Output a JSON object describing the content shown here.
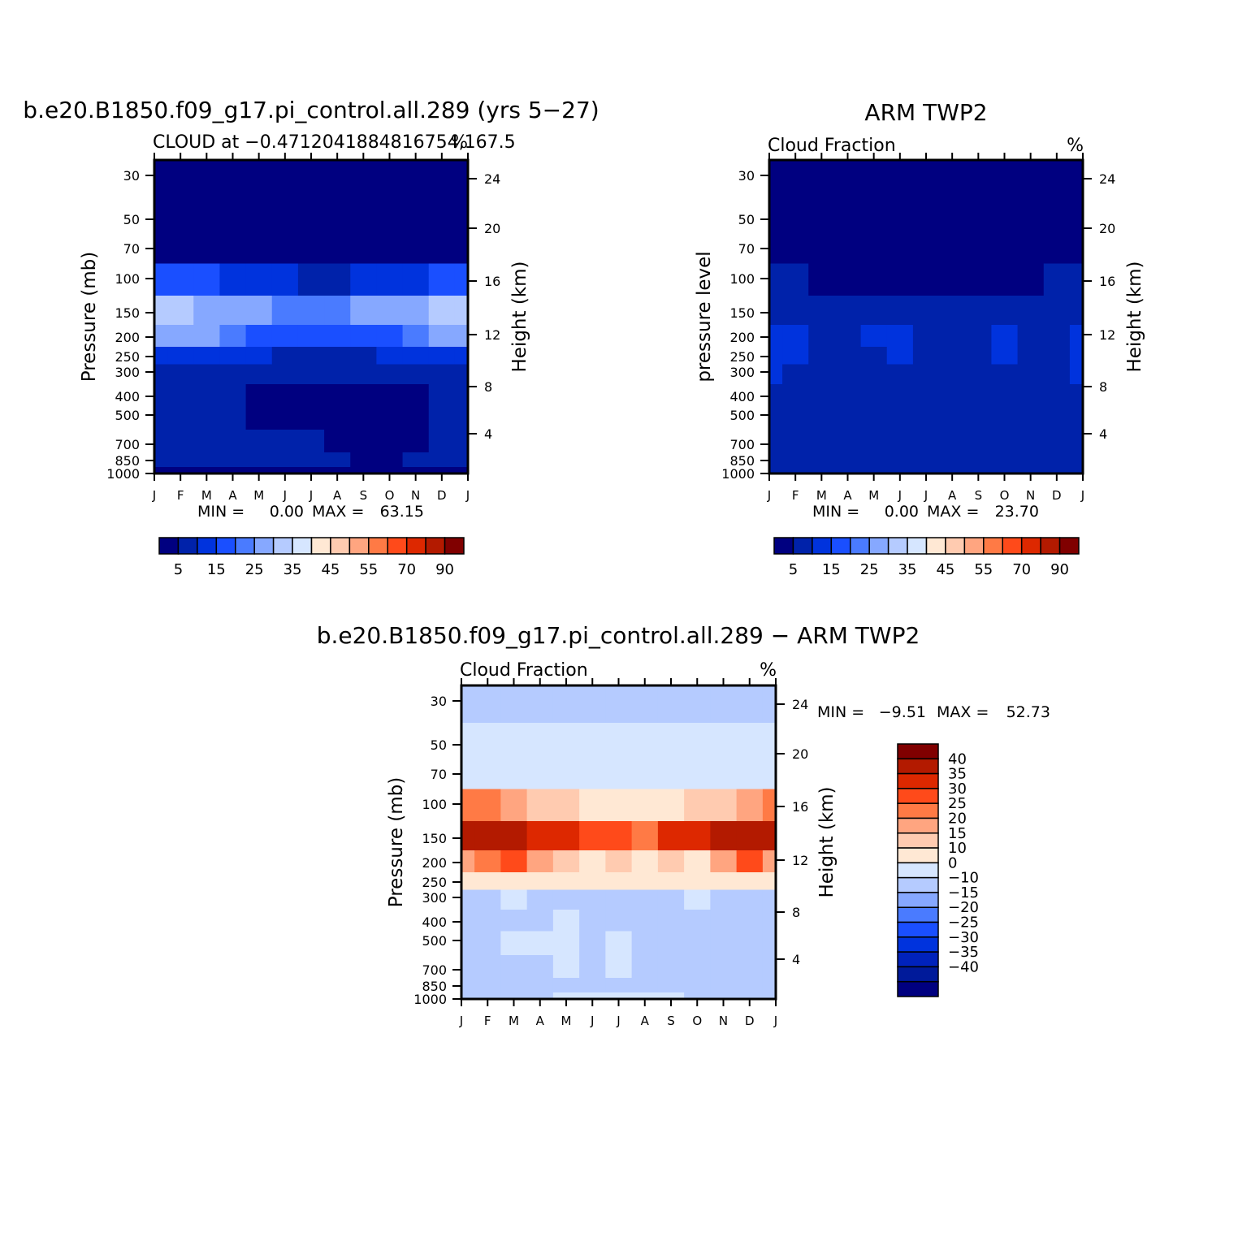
{
  "colors": {
    "panel_palette": [
      "#000080",
      "#0022aa",
      "#0033dd",
      "#1a4fff",
      "#4a7bff",
      "#86a8ff",
      "#b5cbff",
      "#d6e6ff",
      "#ffe8d4",
      "#ffcbb0",
      "#ffa580",
      "#ff7a45",
      "#ff4a1a",
      "#dd2800",
      "#b31a00",
      "#800000"
    ],
    "diff_palette": [
      "#000080",
      "#001a9a",
      "#0022bb",
      "#0033dd",
      "#1a4fff",
      "#4a7bff",
      "#86a8ff",
      "#b5cbff",
      "#d6e6ff",
      "#ffe8d4",
      "#ffcbb0",
      "#ffa580",
      "#ff7a45",
      "#ff4a1a",
      "#dd2800",
      "#b31a00",
      "#800000"
    ]
  },
  "month_labels": [
    "J",
    "F",
    "M",
    "A",
    "M",
    "J",
    "J",
    "A",
    "S",
    "O",
    "N",
    "D",
    "J"
  ],
  "pressure_ticks": [
    "30",
    "50",
    "70",
    "100",
    "150",
    "200",
    "250",
    "300",
    "400",
    "500",
    "700",
    "850",
    "1000"
  ],
  "height_ticks": [
    "24",
    "20",
    "16",
    "12",
    "8",
    "4"
  ],
  "panels": {
    "model": {
      "main_title": "b.e20.B1850.f09_g17.pi_control.all.289 (yrs 5-27)",
      "left_title": "CLOUD at -0.4712041884816754,167.5",
      "right_title": "%",
      "ylabel": "Pressure (mb)",
      "ylabel_right": "Height (km)",
      "min_label": "MIN =",
      "min_value": "0.00",
      "max_label": "MAX =",
      "max_value": "63.15"
    },
    "obs": {
      "main_title": "ARM TWP2",
      "left_title": "Cloud Fraction",
      "right_title": "%",
      "ylabel": "pressure level",
      "ylabel_right": "Height (km)",
      "min_label": "MIN =",
      "min_value": "0.00",
      "max_label": "MAX =",
      "max_value": "23.70"
    },
    "diff": {
      "main_title": "b.e20.B1850.f09_g17.pi_control.all.289 - ARM TWP2",
      "left_title": "Cloud Fraction",
      "right_title": "%",
      "ylabel": "Pressure (mb)",
      "ylabel_right": "Height (km)",
      "min_label": "MIN =",
      "min_value": "-9.51",
      "max_label": "MAX =",
      "max_value": "52.73"
    }
  },
  "colorbar_top": {
    "labels": [
      "5",
      "15",
      "25",
      "35",
      "45",
      "55",
      "70",
      "90"
    ]
  },
  "colorbar_diff": {
    "labels": [
      "40",
      "35",
      "30",
      "25",
      "20",
      "15",
      "10",
      "0",
      "-10",
      "-15",
      "-20",
      "-25",
      "-30",
      "-35",
      "-40"
    ]
  },
  "chart_data": [
    {
      "type": "heatmap",
      "title": "b.e20.B1850.f09_g17.pi_control.all.289 (yrs 5-27)",
      "subtitle": "CLOUD at -0.4712041884816754,167.5",
      "units": "%",
      "x": [
        "J",
        "F",
        "M",
        "A",
        "M",
        "J",
        "J",
        "A",
        "S",
        "O",
        "N",
        "D",
        "J"
      ],
      "y": [
        30,
        50,
        70,
        100,
        150,
        200,
        250,
        300,
        400,
        500,
        700,
        850,
        1000
      ],
      "ylabel": "Pressure (mb)",
      "ylabel_right": "Height (km)",
      "y_right_ticks": [
        24,
        20,
        16,
        12,
        8,
        4
      ],
      "min": 0.0,
      "max": 63.15,
      "legend_levels": [
        5,
        15,
        25,
        35,
        45,
        55,
        70,
        90
      ],
      "values": [
        [
          1,
          1,
          1,
          1,
          1,
          1,
          1,
          1,
          1,
          1,
          1,
          1,
          1
        ],
        [
          1,
          1,
          1,
          1,
          1,
          1,
          1,
          1,
          1,
          1,
          1,
          1,
          1
        ],
        [
          2,
          3,
          1,
          1,
          1,
          1,
          1,
          1,
          1,
          1,
          1,
          1,
          2
        ],
        [
          33,
          30,
          26,
          21,
          17,
          15,
          14,
          14,
          15,
          17,
          21,
          27,
          33
        ],
        [
          63,
          63,
          52,
          46,
          45,
          42,
          40,
          35,
          45,
          46,
          52,
          63,
          63
        ],
        [
          46,
          45,
          45,
          37,
          34,
          33,
          30,
          25,
          29,
          31,
          36,
          45,
          46
        ],
        [
          20,
          19,
          19,
          17,
          15,
          14,
          14,
          13,
          14,
          15,
          17,
          19,
          20
        ],
        [
          10,
          10,
          9,
          8,
          8,
          8,
          7,
          7,
          7,
          7,
          8,
          9,
          10
        ],
        [
          9,
          9,
          5,
          5,
          4,
          3,
          3,
          2,
          2,
          2,
          2,
          5,
          9
        ],
        [
          9,
          9,
          7,
          5,
          4,
          4,
          3,
          2,
          2,
          2,
          3,
          7,
          9
        ],
        [
          6,
          6,
          5,
          5,
          5,
          5,
          5,
          3,
          2,
          3,
          4,
          6,
          6
        ],
        [
          6,
          6,
          6,
          6,
          6,
          6,
          6,
          5,
          3,
          4,
          5,
          6,
          6
        ],
        [
          2,
          2,
          2,
          2,
          2,
          2,
          2,
          2,
          2,
          2,
          2,
          2,
          2
        ]
      ]
    },
    {
      "type": "heatmap",
      "title": "ARM TWP2",
      "subtitle": "Cloud Fraction",
      "units": "%",
      "x": [
        "J",
        "F",
        "M",
        "A",
        "M",
        "J",
        "J",
        "A",
        "S",
        "O",
        "N",
        "D",
        "J"
      ],
      "y": [
        30,
        50,
        70,
        100,
        150,
        200,
        250,
        300,
        400,
        500,
        700,
        850,
        1000
      ],
      "ylabel": "pressure level",
      "ylabel_right": "Height (km)",
      "y_right_ticks": [
        24,
        20,
        16,
        12,
        8,
        4
      ],
      "min": 0.0,
      "max": 23.7,
      "legend_levels": [
        5,
        15,
        25,
        35,
        45,
        55,
        70,
        90
      ],
      "values": [
        [
          1,
          1,
          1,
          1,
          1,
          1,
          1,
          1,
          1,
          1,
          1,
          1,
          1
        ],
        [
          1,
          1,
          1,
          1,
          1,
          1,
          1,
          1,
          1,
          1,
          1,
          1,
          1
        ],
        [
          1,
          1,
          1,
          1,
          1,
          1,
          1,
          1,
          1,
          1,
          1,
          1,
          1
        ],
        [
          8,
          5,
          2,
          2,
          2,
          2,
          2,
          3,
          3,
          2,
          3,
          5,
          8
        ],
        [
          14,
          12,
          10,
          10,
          9,
          10,
          9,
          9,
          8,
          11,
          12,
          12,
          14
        ],
        [
          23,
          17,
          13,
          14,
          15,
          22,
          14,
          14,
          13,
          18,
          13,
          14,
          23
        ],
        [
          22,
          17,
          13,
          14,
          14,
          17,
          13,
          14,
          13,
          17,
          14,
          13,
          22
        ],
        [
          15,
          13,
          12,
          9,
          9,
          10,
          11,
          10,
          10,
          13,
          13,
          12,
          15
        ],
        [
          13,
          12,
          12,
          10,
          9,
          8,
          7,
          8,
          9,
          5,
          7,
          11,
          13
        ],
        [
          14,
          14,
          13,
          10,
          9,
          9,
          8,
          9,
          10,
          5,
          8,
          10,
          14
        ],
        [
          12,
          10,
          9,
          9,
          8,
          9,
          9,
          9,
          8,
          6,
          8,
          9,
          12
        ],
        [
          8,
          8,
          8,
          8,
          8,
          8,
          8,
          8,
          8,
          8,
          8,
          8,
          8
        ],
        [
          5,
          5,
          5,
          5,
          5,
          5,
          5,
          5,
          5,
          5,
          5,
          5,
          5
        ]
      ]
    },
    {
      "type": "heatmap",
      "title": "b.e20.B1850.f09_g17.pi_control.all.289 - ARM TWP2",
      "subtitle": "Cloud Fraction",
      "units": "%",
      "x": [
        "J",
        "F",
        "M",
        "A",
        "M",
        "J",
        "J",
        "A",
        "S",
        "O",
        "N",
        "D",
        "J"
      ],
      "y": [
        30,
        50,
        70,
        100,
        150,
        200,
        250,
        300,
        400,
        500,
        700,
        850,
        1000
      ],
      "ylabel": "Pressure (mb)",
      "ylabel_right": "Height (km)",
      "y_right_ticks": [
        24,
        20,
        16,
        12,
        8,
        4
      ],
      "min": -9.51,
      "max": 52.73,
      "legend_levels": [
        -40,
        -35,
        -30,
        -25,
        -20,
        -15,
        -10,
        0,
        10,
        15,
        20,
        25,
        30,
        35,
        40
      ],
      "values": [
        [
          -2,
          -2,
          -2,
          -2,
          -2,
          -2,
          -2,
          -2,
          -2,
          -2,
          -2,
          -2,
          -2
        ],
        [
          2,
          2,
          2,
          2,
          2,
          2,
          2,
          2,
          2,
          2,
          2,
          2,
          2
        ],
        [
          3,
          3,
          3,
          3,
          3,
          3,
          3,
          3,
          3,
          3,
          3,
          3,
          3
        ],
        [
          25,
          25,
          24,
          19,
          15,
          13,
          12,
          11,
          12,
          15,
          18,
          22,
          25
        ],
        [
          49,
          51,
          42,
          36,
          36,
          32,
          31,
          26,
          37,
          35,
          40,
          51,
          49
        ],
        [
          23,
          28,
          32,
          23,
          19,
          11,
          16,
          11,
          16,
          13,
          23,
          31,
          23
        ],
        [
          12,
          12,
          12,
          12,
          12,
          12,
          12,
          12,
          12,
          12,
          12,
          12,
          12
        ],
        [
          -2,
          -2,
          2,
          -2,
          -2,
          -2,
          -2,
          -2,
          -2,
          2,
          -2,
          -2,
          -2
        ],
        [
          -4,
          -3,
          -3,
          -4,
          2,
          -5,
          -4,
          -6,
          -7,
          -3,
          -5,
          -6,
          -4
        ],
        [
          -5,
          -5,
          2,
          2,
          2,
          -5,
          2,
          -7,
          -8,
          -3,
          -5,
          -4,
          -5
        ],
        [
          -6,
          -4,
          -4,
          -4,
          2,
          -4,
          2,
          -6,
          -6,
          -3,
          -4,
          -3,
          -6
        ],
        [
          -2,
          -2,
          -2,
          -2,
          -2,
          -2,
          -2,
          -3,
          -5,
          -4,
          -3,
          -2,
          -2
        ],
        [
          -3,
          -3,
          -3,
          -3,
          2,
          2,
          2,
          2,
          2,
          -2,
          -3,
          -3,
          -3
        ]
      ]
    }
  ]
}
